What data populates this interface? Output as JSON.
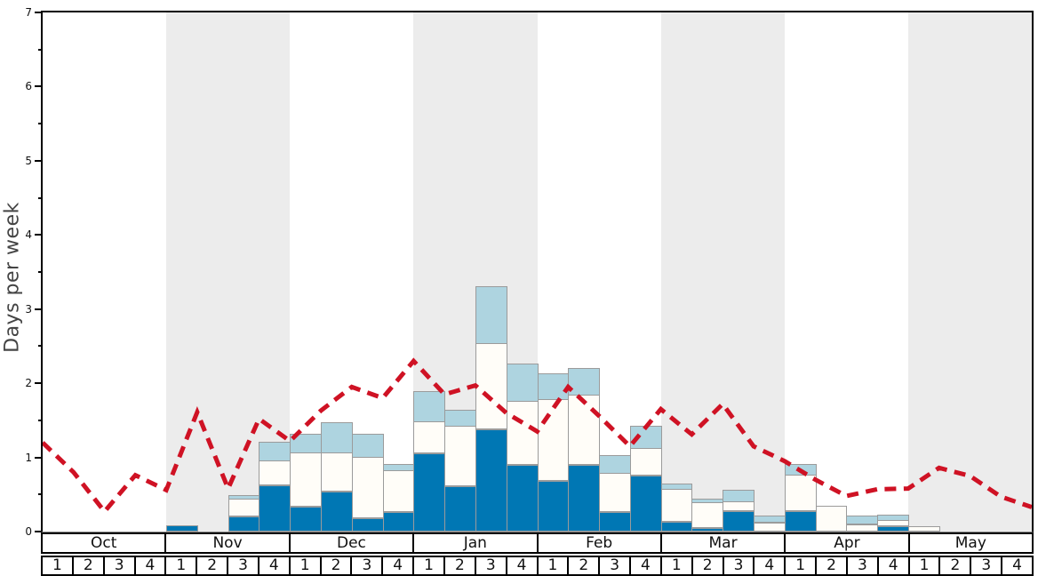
{
  "figure": {
    "ylabel": "Days per week"
  },
  "axis": {
    "y_min": 0,
    "y_max": 7,
    "y_major_step": 1,
    "y_minor_step": 0.5,
    "y_tick_labels": [
      "0",
      "1",
      "2",
      "3",
      "4",
      "5",
      "6",
      "7"
    ]
  },
  "x_axis": {
    "months": [
      "Oct",
      "Nov",
      "Dec",
      "Jan",
      "Feb",
      "Mar",
      "Apr",
      "May"
    ],
    "week_labels": [
      "1",
      "2",
      "3",
      "4"
    ],
    "shaded_month_indices": [
      1,
      3,
      5,
      7
    ]
  },
  "colors": {
    "dark_blue": "#0077b4",
    "white_segment": "#fffdf8",
    "light_blue": "#aed4e0",
    "red_line": "#cf1224",
    "band_gray": "#ececec",
    "bar_border": "#9b9b9b",
    "axis_black": "#000000"
  },
  "chart_data": {
    "type": "bar",
    "stacked": true,
    "title": "",
    "xlabel": "",
    "ylabel": "Days per week",
    "ylim": [
      0,
      7
    ],
    "grid": false,
    "legend": "none",
    "categories": [
      "Oct 1",
      "Oct 2",
      "Oct 3",
      "Oct 4",
      "Nov 1",
      "Nov 2",
      "Nov 3",
      "Nov 4",
      "Dec 1",
      "Dec 2",
      "Dec 3",
      "Dec 4",
      "Jan 1",
      "Jan 2",
      "Jan 3",
      "Jan 4",
      "Feb 1",
      "Feb 2",
      "Feb 3",
      "Feb 4",
      "Mar 1",
      "Mar 2",
      "Mar 3",
      "Mar 4",
      "Apr 1",
      "Apr 2",
      "Apr 3",
      "Apr 4",
      "May 1",
      "May 2",
      "May 3",
      "May 4"
    ],
    "series": [
      {
        "name": "dark-blue-segment",
        "color": "#0077b4",
        "values": [
          0,
          0,
          0,
          0,
          0.08,
          0,
          0.2,
          0.62,
          0.33,
          0.54,
          0.18,
          0.26,
          1.05,
          0.61,
          1.38,
          0.9,
          0.68,
          0.9,
          0.26,
          0.75,
          0.13,
          0.05,
          0.28,
          0,
          0.27,
          0,
          0,
          0.07,
          0,
          0,
          0,
          0
        ]
      },
      {
        "name": "white-segment",
        "color": "#fffdf8",
        "values": [
          0,
          0,
          0,
          0,
          0,
          0,
          0.23,
          0.33,
          0.72,
          0.51,
          0.82,
          0.56,
          0.42,
          0.8,
          1.15,
          0.85,
          1.09,
          0.93,
          0.52,
          0.37,
          0.43,
          0.33,
          0.12,
          0.12,
          0.49,
          0.35,
          0.1,
          0.07,
          0.07,
          0,
          0,
          0
        ]
      },
      {
        "name": "light-blue-segment",
        "color": "#aed4e0",
        "values": [
          0,
          0,
          0,
          0,
          0,
          0,
          0.05,
          0.25,
          0.26,
          0.41,
          0.31,
          0.08,
          0.41,
          0.22,
          0.77,
          0.5,
          0.35,
          0.36,
          0.24,
          0.3,
          0.08,
          0.05,
          0.15,
          0.08,
          0.14,
          0,
          0.1,
          0.08,
          0,
          0,
          0,
          0
        ]
      }
    ],
    "line_overlay": {
      "name": "red-dashed-line",
      "type": "line",
      "style": "dashed",
      "color": "#cf1224",
      "points_at": "week boundaries (33 points, left edge to right edge)",
      "values": [
        1.2,
        0.8,
        0.27,
        0.76,
        0.56,
        1.61,
        0.58,
        1.52,
        1.22,
        1.63,
        1.95,
        1.8,
        2.3,
        1.85,
        1.97,
        1.6,
        1.35,
        1.95,
        1.56,
        1.15,
        1.65,
        1.31,
        1.72,
        1.15,
        0.95,
        0.7,
        0.48,
        0.57,
        0.58,
        0.86,
        0.75,
        0.47,
        0.33
      ]
    }
  }
}
